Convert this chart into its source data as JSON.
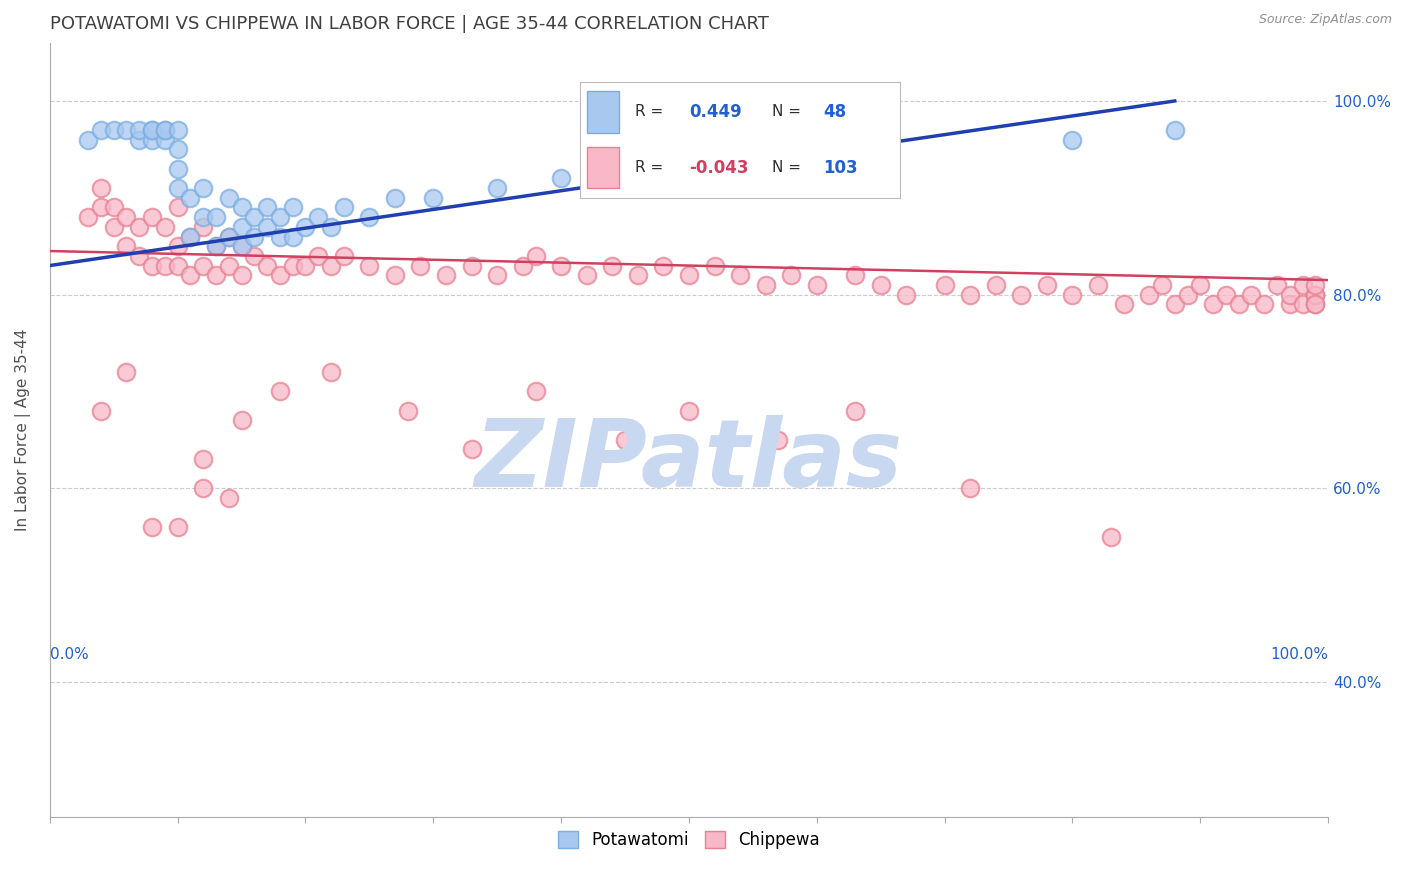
{
  "title": "POTAWATOMI VS CHIPPEWA IN LABOR FORCE | AGE 35-44 CORRELATION CHART",
  "source_text": "Source: ZipAtlas.com",
  "ylabel": "In Labor Force | Age 35-44",
  "xlim": [
    0.0,
    1.0
  ],
  "ylim": [
    0.26,
    1.06
  ],
  "y_ticks": [
    0.4,
    0.6,
    0.8,
    1.0
  ],
  "y_tick_labels": [
    "40.0%",
    "60.0%",
    "80.0%",
    "100.0%"
  ],
  "potawatomi_R": 0.449,
  "potawatomi_N": 48,
  "chippewa_R": -0.043,
  "chippewa_N": 103,
  "potawatomi_color": "#a8c8f0",
  "potawatomi_edge": "#7baee0",
  "chippewa_color": "#f8b8c8",
  "chippewa_edge": "#e88090",
  "potawatomi_line_color": "#2040b0",
  "chippewa_line_color": "#d04060",
  "watermark_text": "ZIPatlas",
  "watermark_color": "#c8d8f0",
  "background_color": "#ffffff",
  "grid_color": "#cccccc",
  "legend_R_color": "#2060d0",
  "legend_N_color": "#2060d0",
  "pot_x": [
    0.03,
    0.04,
    0.05,
    0.06,
    0.07,
    0.07,
    0.08,
    0.08,
    0.08,
    0.09,
    0.09,
    0.09,
    0.1,
    0.1,
    0.1,
    0.1,
    0.11,
    0.11,
    0.12,
    0.12,
    0.13,
    0.13,
    0.14,
    0.14,
    0.15,
    0.15,
    0.15,
    0.16,
    0.16,
    0.17,
    0.17,
    0.18,
    0.18,
    0.19,
    0.19,
    0.2,
    0.21,
    0.22,
    0.23,
    0.25,
    0.27,
    0.3,
    0.35,
    0.4,
    0.55,
    0.65,
    0.8,
    0.88
  ],
  "pot_y": [
    0.96,
    0.97,
    0.97,
    0.97,
    0.96,
    0.97,
    0.96,
    0.97,
    0.97,
    0.96,
    0.97,
    0.97,
    0.91,
    0.93,
    0.95,
    0.97,
    0.86,
    0.9,
    0.88,
    0.91,
    0.85,
    0.88,
    0.86,
    0.9,
    0.85,
    0.87,
    0.89,
    0.86,
    0.88,
    0.87,
    0.89,
    0.86,
    0.88,
    0.86,
    0.89,
    0.87,
    0.88,
    0.87,
    0.89,
    0.88,
    0.9,
    0.9,
    0.91,
    0.92,
    0.93,
    0.94,
    0.96,
    0.97
  ],
  "chip_x": [
    0.03,
    0.04,
    0.04,
    0.05,
    0.05,
    0.06,
    0.06,
    0.07,
    0.07,
    0.08,
    0.08,
    0.09,
    0.09,
    0.1,
    0.1,
    0.1,
    0.11,
    0.11,
    0.12,
    0.12,
    0.13,
    0.13,
    0.14,
    0.14,
    0.15,
    0.15,
    0.16,
    0.17,
    0.18,
    0.19,
    0.2,
    0.21,
    0.22,
    0.23,
    0.25,
    0.27,
    0.29,
    0.31,
    0.33,
    0.35,
    0.37,
    0.38,
    0.4,
    0.42,
    0.44,
    0.46,
    0.48,
    0.5,
    0.52,
    0.54,
    0.56,
    0.58,
    0.6,
    0.63,
    0.65,
    0.67,
    0.7,
    0.72,
    0.74,
    0.76,
    0.78,
    0.8,
    0.82,
    0.84,
    0.86,
    0.87,
    0.88,
    0.89,
    0.9,
    0.91,
    0.92,
    0.93,
    0.94,
    0.95,
    0.96,
    0.97,
    0.97,
    0.98,
    0.98,
    0.99,
    0.99,
    0.99,
    0.99,
    0.99,
    0.04,
    0.06,
    0.08,
    0.12,
    0.15,
    0.18,
    0.1,
    0.12,
    0.14,
    0.22,
    0.28,
    0.33,
    0.38,
    0.45,
    0.5,
    0.57,
    0.63,
    0.72,
    0.83
  ],
  "chip_y": [
    0.88,
    0.89,
    0.91,
    0.87,
    0.89,
    0.85,
    0.88,
    0.84,
    0.87,
    0.83,
    0.88,
    0.83,
    0.87,
    0.83,
    0.85,
    0.89,
    0.82,
    0.86,
    0.83,
    0.87,
    0.82,
    0.85,
    0.83,
    0.86,
    0.82,
    0.85,
    0.84,
    0.83,
    0.82,
    0.83,
    0.83,
    0.84,
    0.83,
    0.84,
    0.83,
    0.82,
    0.83,
    0.82,
    0.83,
    0.82,
    0.83,
    0.84,
    0.83,
    0.82,
    0.83,
    0.82,
    0.83,
    0.82,
    0.83,
    0.82,
    0.81,
    0.82,
    0.81,
    0.82,
    0.81,
    0.8,
    0.81,
    0.8,
    0.81,
    0.8,
    0.81,
    0.8,
    0.81,
    0.79,
    0.8,
    0.81,
    0.79,
    0.8,
    0.81,
    0.79,
    0.8,
    0.79,
    0.8,
    0.79,
    0.81,
    0.79,
    0.8,
    0.79,
    0.81,
    0.8,
    0.79,
    0.8,
    0.79,
    0.81,
    0.68,
    0.72,
    0.56,
    0.6,
    0.67,
    0.7,
    0.56,
    0.63,
    0.59,
    0.72,
    0.68,
    0.64,
    0.7,
    0.65,
    0.68,
    0.65,
    0.68,
    0.6,
    0.55
  ]
}
